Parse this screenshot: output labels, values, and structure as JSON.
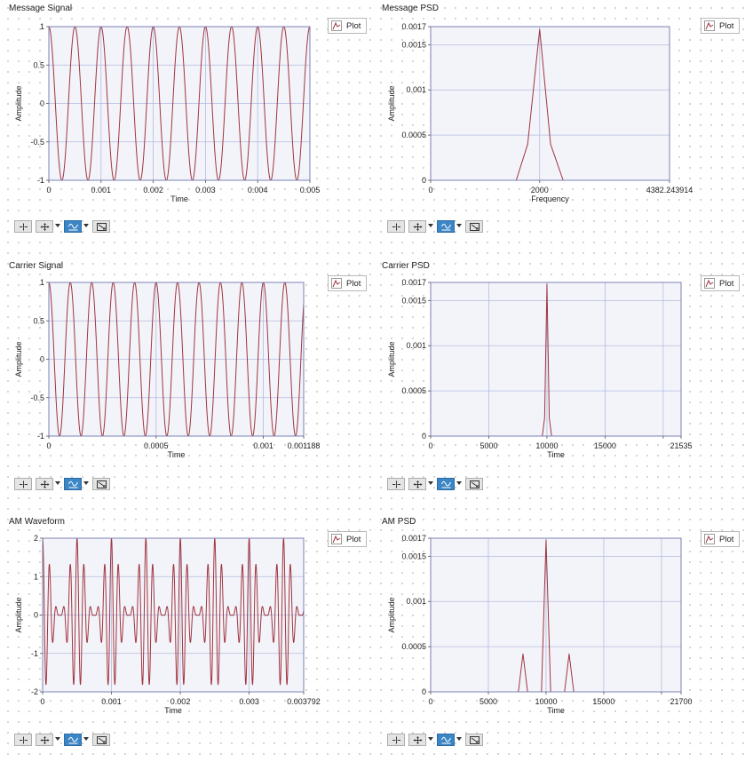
{
  "legend_label": "Plot",
  "colors": {
    "trace": "#a0343e",
    "grid": "#b4bbdf",
    "plot_bg": "#f3f4fa",
    "frame": "#7b82b4",
    "toolbar_active": "#3d86c6"
  },
  "toolbar_icons": [
    "crosshair-cursor-icon",
    "pan-icon",
    "zoom-icon",
    "zoom-to-fit-icon"
  ],
  "graphs": [
    {
      "title": "Message Signal",
      "chart_data": {
        "type": "line",
        "xlabel": "Time",
        "ylabel": "Amplitude",
        "xlim": [
          0,
          0.005
        ],
        "ylim": [
          -1,
          1
        ],
        "xticks": [
          0,
          0.001,
          0.002,
          0.003,
          0.004,
          0.005
        ],
        "xtick_labels": [
          "0",
          "0.001",
          "0.002",
          "0.003",
          "0.004",
          "0.005"
        ],
        "yticks": [
          -1,
          -0.5,
          0,
          0.5,
          1
        ],
        "ytick_labels": [
          "-1",
          "-0.5",
          "0",
          "0.5",
          "1"
        ],
        "signal": {
          "kind": "cosine",
          "frequency_hz": 2000,
          "amplitude": 1
        }
      }
    },
    {
      "title": "Message PSD",
      "chart_data": {
        "type": "line",
        "xlabel": "Frequency",
        "ylabel": "Amplitude",
        "xlim": [
          0,
          4382.243914
        ],
        "ylim": [
          0,
          0.0017
        ],
        "xticks": [
          0,
          2000,
          4382.243914
        ],
        "xtick_labels": [
          "0",
          "2000",
          "4382.243914"
        ],
        "yticks": [
          0,
          0.0005,
          0.001,
          0.0015,
          0.0017
        ],
        "ytick_labels": [
          "0",
          "0.0005",
          "0.001",
          "0.0015",
          "0.0017"
        ],
        "points": [
          [
            0,
            0
          ],
          [
            1570,
            0
          ],
          [
            1780,
            0.0004
          ],
          [
            2000,
            0.00167
          ],
          [
            2200,
            0.0004
          ],
          [
            2430,
            0
          ],
          [
            4382.243914,
            0
          ]
        ]
      }
    },
    {
      "title": "Carrier Signal",
      "chart_data": {
        "type": "line",
        "xlabel": "Time",
        "ylabel": "Amplitude",
        "xlim": [
          0,
          0.001188
        ],
        "ylim": [
          -1,
          1
        ],
        "xticks": [
          0,
          0.0005,
          0.001,
          0.001188
        ],
        "xtick_labels": [
          "0",
          "0.0005",
          "0.001",
          "0.001188"
        ],
        "yticks": [
          -1,
          -0.5,
          0,
          0.5,
          1
        ],
        "ytick_labels": [
          "-1",
          "-0.5",
          "0",
          "0.5",
          "1"
        ],
        "signal": {
          "kind": "cosine",
          "frequency_hz": 10000,
          "amplitude": 1
        }
      }
    },
    {
      "title": "Carrier PSD",
      "chart_data": {
        "type": "line",
        "xlabel": "Time",
        "ylabel": "Amplitude",
        "xlim": [
          0,
          21535
        ],
        "ylim": [
          0,
          0.0017
        ],
        "xticks": [
          0,
          5000,
          10000,
          15000,
          20000,
          21535
        ],
        "xtick_labels": [
          "0",
          "5000",
          "10000",
          "15000",
          "",
          "21535"
        ],
        "yticks": [
          0,
          0.0005,
          0.001,
          0.0015,
          0.0017
        ],
        "ytick_labels": [
          "0",
          "0.0005",
          "0.001",
          "0.0015",
          "0.0017"
        ],
        "points": [
          [
            0,
            0
          ],
          [
            9600,
            0
          ],
          [
            9800,
            0.0002
          ],
          [
            10000,
            0.00168
          ],
          [
            10200,
            0.0002
          ],
          [
            10400,
            0
          ],
          [
            21535,
            0
          ]
        ]
      }
    },
    {
      "title": "AM Waveform",
      "chart_data": {
        "type": "line",
        "xlabel": "Time",
        "ylabel": "Amplitude",
        "xlim": [
          0,
          0.003792
        ],
        "ylim": [
          -2,
          2
        ],
        "xticks": [
          0,
          0.001,
          0.002,
          0.003,
          0.003792
        ],
        "xtick_labels": [
          "0",
          "0.001",
          "0.002",
          "0.003",
          "0.003792"
        ],
        "yticks": [
          -2,
          -1,
          0,
          1,
          2
        ],
        "ytick_labels": [
          "-2",
          "-1",
          "0",
          "1",
          "2"
        ],
        "signal": {
          "kind": "am",
          "carrier_hz": 10000,
          "message_hz": 2000,
          "amplitude": 1
        }
      }
    },
    {
      "title": "AM PSD",
      "chart_data": {
        "type": "line",
        "xlabel": "Time",
        "ylabel": "Amplitude",
        "xlim": [
          0,
          21700
        ],
        "ylim": [
          0,
          0.0017
        ],
        "xticks": [
          0,
          5000,
          10000,
          15000,
          20000,
          21700
        ],
        "xtick_labels": [
          "0",
          "5000",
          "10000",
          "15000",
          "",
          "21700"
        ],
        "yticks": [
          0,
          0.0005,
          0.001,
          0.0015,
          0.0017
        ],
        "ytick_labels": [
          "0",
          "0.0005",
          "0.001",
          "0.0015",
          "0.0017"
        ],
        "points": [
          [
            0,
            0
          ],
          [
            7600,
            0
          ],
          [
            8000,
            0.00042
          ],
          [
            8400,
            0
          ],
          [
            9600,
            0
          ],
          [
            10000,
            0.00168
          ],
          [
            10400,
            0
          ],
          [
            11600,
            0
          ],
          [
            12000,
            0.00042
          ],
          [
            12400,
            0
          ],
          [
            21700,
            0
          ]
        ]
      }
    }
  ]
}
